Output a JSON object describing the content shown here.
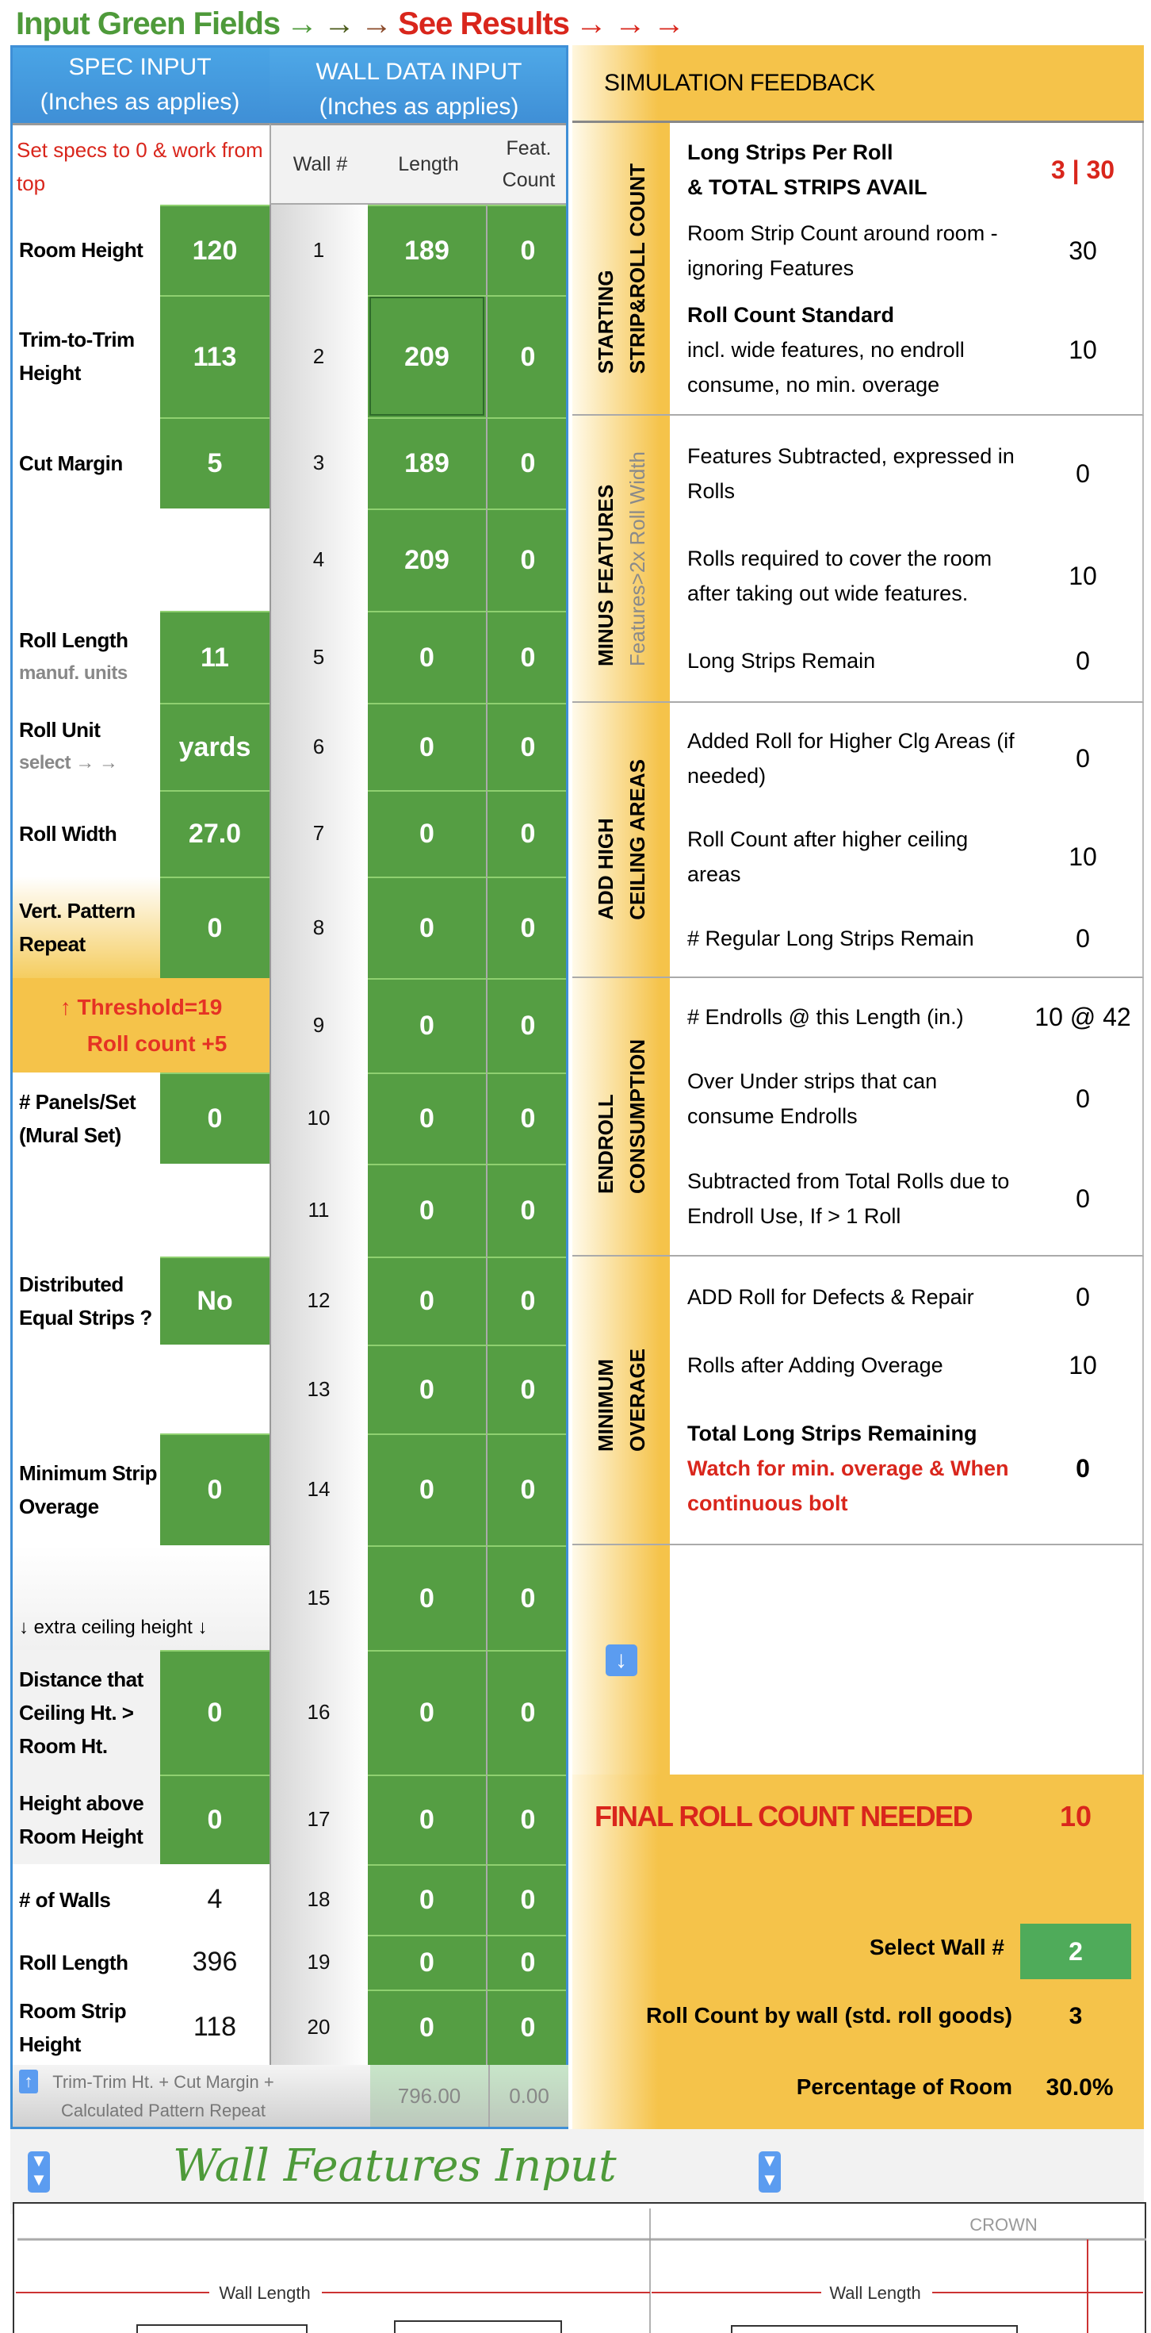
{
  "banner": {
    "input": "Input Green Fields",
    "arrows1": "→",
    "arrows2": "→",
    "arrows3": "→",
    "results": "See Results",
    "arrows4": "→ → →"
  },
  "spec_header": {
    "title": "SPEC INPUT",
    "sub": "(Inches as applies)",
    "note": "Set specs to 0 & work from top"
  },
  "wall_header": {
    "title": "WALL DATA INPUT",
    "sub": "(Inches as applies)",
    "col_wall": "Wall #",
    "col_length": "Length",
    "col_feat": "Feat. Count"
  },
  "specs": [
    {
      "label": "Room Height",
      "value": "120"
    },
    {
      "label": "Trim-to-Trim Height",
      "value": "113"
    },
    {
      "label": "Cut Margin",
      "value": "5"
    },
    {
      "label": "Roll Length",
      "sub": "manuf. units",
      "value": "11"
    },
    {
      "label": "Roll Unit",
      "sub": "select → →",
      "value": "yards"
    },
    {
      "label": "Roll Width",
      "value": "27.0"
    },
    {
      "label": "Vert. Pattern Repeat",
      "value": "0"
    },
    {
      "label": "# Panels/Set (Mural Set)",
      "value": "0"
    },
    {
      "label": "Distributed Equal Strips ?",
      "value": "No"
    },
    {
      "label": "Minimum Strip Overage",
      "value": "0"
    },
    {
      "label": "Distance that Ceiling Ht. > Room Ht.",
      "value": "0"
    },
    {
      "label": "Height above Room Height",
      "value": "0"
    },
    {
      "label": "# of Walls",
      "value": "4"
    },
    {
      "label": "Roll Length",
      "value": "396"
    },
    {
      "label": "Room Strip Height",
      "value": "118"
    }
  ],
  "threshold": {
    "line1": "↑ Threshold=19",
    "line2": "Roll count +5"
  },
  "extra_ceiling": "↓ extra ceiling height ↓",
  "walls": [
    {
      "n": "1",
      "length": "189",
      "feat": "0"
    },
    {
      "n": "2",
      "length": "209",
      "feat": "0"
    },
    {
      "n": "3",
      "length": "189",
      "feat": "0"
    },
    {
      "n": "4",
      "length": "209",
      "feat": "0"
    },
    {
      "n": "5",
      "length": "0",
      "feat": "0"
    },
    {
      "n": "6",
      "length": "0",
      "feat": "0"
    },
    {
      "n": "7",
      "length": "0",
      "feat": "0"
    },
    {
      "n": "8",
      "length": "0",
      "feat": "0"
    },
    {
      "n": "9",
      "length": "0",
      "feat": "0"
    },
    {
      "n": "10",
      "length": "0",
      "feat": "0"
    },
    {
      "n": "11",
      "length": "0",
      "feat": "0"
    },
    {
      "n": "12",
      "length": "0",
      "feat": "0"
    },
    {
      "n": "13",
      "length": "0",
      "feat": "0"
    },
    {
      "n": "14",
      "length": "0",
      "feat": "0"
    },
    {
      "n": "15",
      "length": "0",
      "feat": "0"
    },
    {
      "n": "16",
      "length": "0",
      "feat": "0"
    },
    {
      "n": "17",
      "length": "0",
      "feat": "0"
    },
    {
      "n": "18",
      "length": "0",
      "feat": "0"
    },
    {
      "n": "19",
      "length": "0",
      "feat": "0"
    },
    {
      "n": "20",
      "length": "0",
      "feat": "0"
    }
  ],
  "footer": {
    "note": "Trim-Trim Ht. + Cut Margin + Calculated Pattern Repeat",
    "length_total": "796.00",
    "feat_total": "0.00"
  },
  "sim": {
    "title": "SIMULATION FEEDBACK",
    "sections": [
      {
        "label": "STARTING",
        "label2": "STRIP&ROLL COUNT",
        "items": [
          {
            "text": "Long Strips Per Roll\n &  TOTAL STRIPS AVAIL",
            "value": "3 | 30",
            "style": "bold-red"
          },
          {
            "text": "Room Strip Count around room - ignoring Features",
            "value": "30"
          },
          {
            "head": "Roll Count Standard",
            "text": "incl. wide features, no endroll consume, no min. overage",
            "value": "10"
          }
        ]
      },
      {
        "label": "MINUS FEATURES",
        "label2": "Features>2x Roll Width",
        "items": [
          {
            "text": "Features Subtracted, expressed in Rolls",
            "value": "0"
          },
          {
            "text": "Rolls required to cover the room after taking out wide features.",
            "value": "10"
          },
          {
            "text": "Long Strips Remain",
            "value": "0"
          }
        ]
      },
      {
        "label": "ADD HIGH",
        "label2": "CEILING AREAS",
        "items": [
          {
            "text": "Added Roll for Higher Clg Areas (if needed)",
            "value": "0"
          },
          {
            "text": "Roll Count after higher ceiling areas",
            "value": "10"
          },
          {
            "text": "#  Regular Long Strips Remain",
            "value": "0"
          }
        ]
      },
      {
        "label": "ENDROLL",
        "label2": "CONSUMPTION",
        "items": [
          {
            "text": "# Endrolls @ this  Length (in.)",
            "value": "10 @ 42"
          },
          {
            "text": "Over Under strips that can consume Endrolls",
            "value": "0"
          },
          {
            "text": "Subtracted from Total Rolls due to Endroll Use, If > 1 Roll",
            "value": "0"
          }
        ]
      },
      {
        "label": "MINIMUM",
        "label2": "OVERAGE",
        "items": [
          {
            "text": "ADD Roll for Defects & Repair",
            "value": "0"
          },
          {
            "text": "Rolls after Adding Overage",
            "value": "10"
          },
          {
            "head": "Total Long Strips Remaining",
            "warn": "Watch for min. overage & When continuous bolt",
            "value": "0",
            "style": "bold"
          }
        ]
      }
    ],
    "final_label": "FINAL ROLL COUNT NEEDED",
    "final_value": "10",
    "select_wall_label": "Select Wall #",
    "select_wall_value": "2",
    "roll_by_wall_label": "Roll Count by wall (std. roll goods)",
    "roll_by_wall_value": "3",
    "pct_label": "Percentage of Room",
    "pct_value": "30.0%"
  },
  "features": {
    "title": "Wall Features Input",
    "wall_length": "Wall Length",
    "crown": "CROWN"
  },
  "colors": {
    "green": "#559e43",
    "blue": "#3f8fd6",
    "orange": "#f5c34a",
    "red": "#d9261c"
  }
}
